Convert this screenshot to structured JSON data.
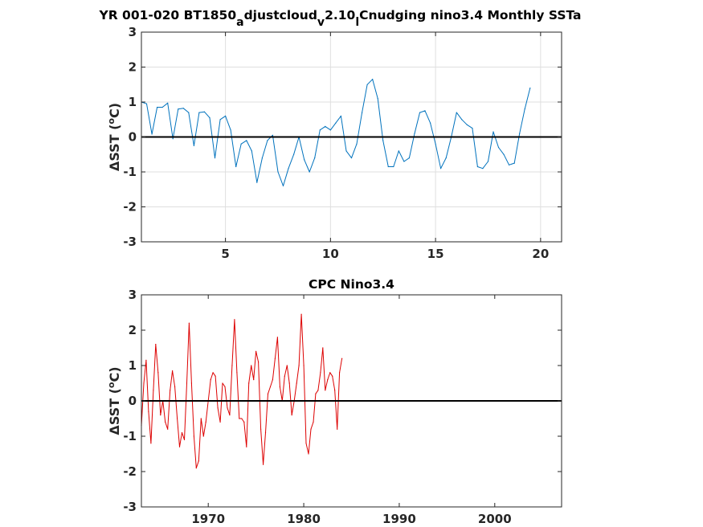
{
  "chart_data": [
    {
      "type": "line",
      "title_parts": [
        "YR 001-020 BT1850",
        "a",
        "djustcloud",
        "v",
        "2.10",
        "l",
        "Cnudging nino3.4 Monthly SSTa"
      ],
      "xlabel": "",
      "ylabel_prefix": "ΔSST (",
      "ylabel_sup": "o",
      "ylabel_suffix": "C)",
      "xlim": [
        1,
        21
      ],
      "ylim": [
        -3,
        3
      ],
      "xticks": [
        5,
        10,
        15,
        20
      ],
      "yticks": [
        -3,
        -2,
        -1,
        0,
        1,
        2,
        3
      ],
      "grid": true,
      "zero_line": true,
      "series_color": "#0072bd",
      "x_start": 1,
      "x_step": 0.25,
      "values": [
        1.0,
        0.95,
        0.08,
        0.85,
        0.85,
        0.97,
        -0.05,
        0.8,
        0.82,
        0.7,
        -0.25,
        0.7,
        0.72,
        0.55,
        -0.6,
        0.5,
        0.6,
        0.2,
        -0.85,
        -0.2,
        -0.1,
        -0.4,
        -1.3,
        -0.6,
        -0.1,
        0.05,
        -1.0,
        -1.4,
        -0.9,
        -0.5,
        0.0,
        -0.65,
        -1.0,
        -0.6,
        0.2,
        0.3,
        0.2,
        0.4,
        0.6,
        -0.4,
        -0.6,
        -0.2,
        0.7,
        1.5,
        1.65,
        1.1,
        -0.1,
        -0.85,
        -0.85,
        -0.4,
        -0.7,
        -0.6,
        0.1,
        0.7,
        0.75,
        0.4,
        -0.2,
        -0.9,
        -0.6,
        0.0,
        0.7,
        0.5,
        0.35,
        0.25,
        -0.85,
        -0.9,
        -0.7,
        0.15,
        -0.3,
        -0.5,
        -0.8,
        -0.75,
        0.1,
        0.8,
        1.4
      ]
    },
    {
      "type": "line",
      "title": "CPC Nino3.4",
      "xlabel": "",
      "ylabel_prefix": "ΔSST (",
      "ylabel_sup": "o",
      "ylabel_suffix": "C)",
      "xlim": [
        1963,
        2007
      ],
      "ylim": [
        -3,
        3
      ],
      "xticks": [
        1970,
        1980,
        1990,
        2000
      ],
      "yticks": [
        -3,
        -2,
        -1,
        0,
        1,
        2,
        3
      ],
      "grid": false,
      "zero_line": true,
      "series_color": "#dd0000",
      "x_start": 1963,
      "x_step": 0.25,
      "values": [
        -0.7,
        0.5,
        1.15,
        -0.3,
        -1.2,
        0.3,
        1.6,
        0.8,
        -0.4,
        0.0,
        -0.6,
        -0.8,
        0.3,
        0.85,
        0.4,
        -0.5,
        -1.3,
        -0.9,
        -1.1,
        0.5,
        2.2,
        0.5,
        -1.0,
        -1.9,
        -1.7,
        -0.5,
        -1.0,
        -0.6,
        0.0,
        0.6,
        0.8,
        0.7,
        -0.2,
        -0.6,
        0.5,
        0.4,
        -0.2,
        -0.4,
        1.0,
        2.3,
        0.8,
        -0.5,
        -0.5,
        -0.6,
        -1.3,
        0.5,
        1.0,
        0.6,
        1.4,
        1.1,
        -0.8,
        -1.8,
        -0.9,
        0.2,
        0.4,
        0.6,
        1.2,
        1.8,
        0.4,
        0.0,
        0.7,
        1.0,
        0.5,
        -0.4,
        0.0,
        0.5,
        1.0,
        2.45,
        1.0,
        -1.2,
        -1.5,
        -0.8,
        -0.6,
        0.2,
        0.3,
        0.8,
        1.5,
        0.3,
        0.6,
        0.8,
        0.7,
        0.3,
        -0.8,
        0.8,
        1.2
      ]
    }
  ]
}
